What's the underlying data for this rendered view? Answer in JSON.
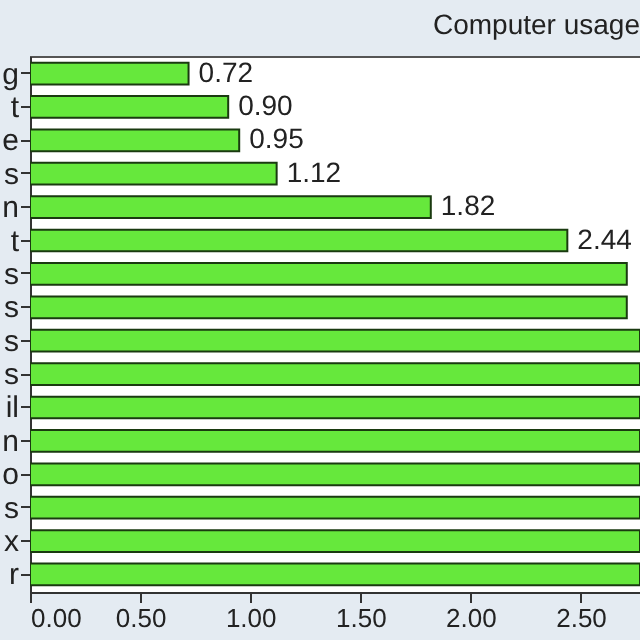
{
  "chart_data": {
    "type": "bar",
    "orientation": "horizontal",
    "title": "Computer usage",
    "categories": [
      "g",
      "t",
      "e",
      "s",
      "n",
      "t",
      "s",
      "s",
      "s",
      "s",
      "il",
      "n",
      "o",
      "s",
      "x",
      "r"
    ],
    "values": [
      0.72,
      0.9,
      0.95,
      1.12,
      1.82,
      2.44,
      2.71,
      2.71,
      2.77,
      2.77,
      2.77,
      2.77,
      2.77,
      2.77,
      2.77,
      2.77
    ],
    "value_labels": [
      "0.72",
      "0.90",
      "0.95",
      "1.12",
      "1.82",
      "2.44",
      null,
      null,
      null,
      null,
      null,
      null,
      null,
      null,
      null,
      null
    ],
    "color": "#66e83c",
    "xlim": [
      0,
      2.77
    ],
    "xticks": [
      {
        "value": 0,
        "label": "0.00"
      },
      {
        "value": 0.5,
        "label": "0.50"
      },
      {
        "value": 1,
        "label": "1.00"
      },
      {
        "value": 1.5,
        "label": "1.50"
      },
      {
        "value": 2,
        "label": "2.00"
      },
      {
        "value": 2.5,
        "label": "2.50"
      }
    ],
    "grid": false
  }
}
